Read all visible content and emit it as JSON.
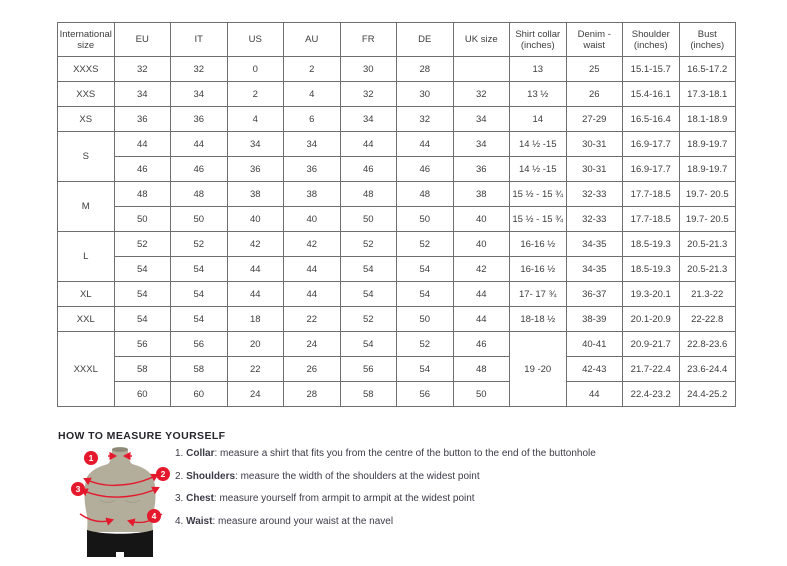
{
  "accent_color": "#e4192c",
  "mannequin_body_color": "#b3ae9b",
  "table": {
    "columns": [
      "International size",
      "EU",
      "IT",
      "US",
      "AU",
      "FR",
      "DE",
      "UK size",
      "Shirt collar (inches)",
      "Denim - waist",
      "Shoulder (inches)",
      "Bust (inches)"
    ],
    "rows": [
      [
        {
          "t": "XXXS"
        },
        {
          "t": "32"
        },
        {
          "t": "32"
        },
        {
          "t": "0"
        },
        {
          "t": "2"
        },
        {
          "t": "30"
        },
        {
          "t": "28"
        },
        {
          "t": ""
        },
        {
          "t": "13"
        },
        {
          "t": "25"
        },
        {
          "t": "15.1-15.7"
        },
        {
          "t": "16.5-17.2"
        }
      ],
      [
        {
          "t": "XXS"
        },
        {
          "t": "34"
        },
        {
          "t": "34"
        },
        {
          "t": "2"
        },
        {
          "t": "4"
        },
        {
          "t": "32"
        },
        {
          "t": "30"
        },
        {
          "t": "32"
        },
        {
          "t": "13 ½"
        },
        {
          "t": "26"
        },
        {
          "t": "15.4-16.1"
        },
        {
          "t": "17.3-18.1"
        }
      ],
      [
        {
          "t": "XS"
        },
        {
          "t": "36"
        },
        {
          "t": "36"
        },
        {
          "t": "4"
        },
        {
          "t": "6"
        },
        {
          "t": "34"
        },
        {
          "t": "32"
        },
        {
          "t": "34"
        },
        {
          "t": "14"
        },
        {
          "t": "27-29"
        },
        {
          "t": "16.5-16.4"
        },
        {
          "t": "18.1-18.9"
        }
      ],
      [
        {
          "t": "S",
          "rs": 2
        },
        {
          "t": "44"
        },
        {
          "t": "44"
        },
        {
          "t": "34"
        },
        {
          "t": "34"
        },
        {
          "t": "44"
        },
        {
          "t": "44"
        },
        {
          "t": "34"
        },
        {
          "t": "14 ½ -15"
        },
        {
          "t": "30-31"
        },
        {
          "t": "16.9-17.7"
        },
        {
          "t": "18.9-19.7"
        }
      ],
      [
        {
          "t": "46"
        },
        {
          "t": "46"
        },
        {
          "t": "36"
        },
        {
          "t": "36"
        },
        {
          "t": "46"
        },
        {
          "t": "46"
        },
        {
          "t": "36"
        },
        {
          "t": "14 ½ -15"
        },
        {
          "t": "30-31"
        },
        {
          "t": "16.9-17.7"
        },
        {
          "t": "18.9-19.7"
        }
      ],
      [
        {
          "t": "M",
          "rs": 2
        },
        {
          "t": "48"
        },
        {
          "t": "48"
        },
        {
          "t": "38"
        },
        {
          "t": "38"
        },
        {
          "t": "48"
        },
        {
          "t": "48"
        },
        {
          "t": "38"
        },
        {
          "t": "15 ½ - 15 ¾"
        },
        {
          "t": "32-33"
        },
        {
          "t": "17.7-18.5"
        },
        {
          "t": "19.7- 20.5"
        }
      ],
      [
        {
          "t": "50"
        },
        {
          "t": "50"
        },
        {
          "t": "40"
        },
        {
          "t": "40"
        },
        {
          "t": "50"
        },
        {
          "t": "50"
        },
        {
          "t": "40"
        },
        {
          "t": "15 ½ - 15 ¾"
        },
        {
          "t": "32-33"
        },
        {
          "t": "17.7-18.5"
        },
        {
          "t": "19.7- 20.5"
        }
      ],
      [
        {
          "t": "L",
          "rs": 2
        },
        {
          "t": "52"
        },
        {
          "t": "52"
        },
        {
          "t": "42"
        },
        {
          "t": "42"
        },
        {
          "t": "52"
        },
        {
          "t": "52"
        },
        {
          "t": "40"
        },
        {
          "t": "16-16 ½"
        },
        {
          "t": "34-35"
        },
        {
          "t": "18.5-19.3"
        },
        {
          "t": "20.5-21.3"
        }
      ],
      [
        {
          "t": "54"
        },
        {
          "t": "54"
        },
        {
          "t": "44"
        },
        {
          "t": "44"
        },
        {
          "t": "54"
        },
        {
          "t": "54"
        },
        {
          "t": "42"
        },
        {
          "t": "16-16 ½"
        },
        {
          "t": "34-35"
        },
        {
          "t": "18.5-19.3"
        },
        {
          "t": "20.5-21.3"
        }
      ],
      [
        {
          "t": "XL"
        },
        {
          "t": "54"
        },
        {
          "t": "54"
        },
        {
          "t": "44"
        },
        {
          "t": "44"
        },
        {
          "t": "54"
        },
        {
          "t": "54"
        },
        {
          "t": "44"
        },
        {
          "t": "17- 17 ¾"
        },
        {
          "t": "36-37"
        },
        {
          "t": "19.3-20.1"
        },
        {
          "t": "21.3-22"
        }
      ],
      [
        {
          "t": "XXL"
        },
        {
          "t": "54"
        },
        {
          "t": "54"
        },
        {
          "t": "18"
        },
        {
          "t": "22"
        },
        {
          "t": "52"
        },
        {
          "t": "50"
        },
        {
          "t": "44"
        },
        {
          "t": "18-18 ½"
        },
        {
          "t": "38-39"
        },
        {
          "t": "20.1-20.9"
        },
        {
          "t": "22-22.8"
        }
      ],
      [
        {
          "t": "XXXL",
          "rs": 3
        },
        {
          "t": "56"
        },
        {
          "t": "56"
        },
        {
          "t": "20"
        },
        {
          "t": "24"
        },
        {
          "t": "54"
        },
        {
          "t": "52"
        },
        {
          "t": "46"
        },
        {
          "t": "19 -20",
          "rs": 3
        },
        {
          "t": "40-41"
        },
        {
          "t": "20.9-21.7"
        },
        {
          "t": "22.8-23.6"
        }
      ],
      [
        {
          "t": "58"
        },
        {
          "t": "58"
        },
        {
          "t": "22"
        },
        {
          "t": "26"
        },
        {
          "t": "56"
        },
        {
          "t": "54"
        },
        {
          "t": "48"
        },
        {
          "t": "42-43"
        },
        {
          "t": "21.7-22.4"
        },
        {
          "t": "23.6-24.4"
        }
      ],
      [
        {
          "t": "60"
        },
        {
          "t": "60"
        },
        {
          "t": "24"
        },
        {
          "t": "28"
        },
        {
          "t": "58"
        },
        {
          "t": "56"
        },
        {
          "t": "50"
        },
        {
          "t": "44"
        },
        {
          "t": "22.4-23.2"
        },
        {
          "t": "24.4-25.2"
        }
      ]
    ]
  },
  "measure_guide": {
    "heading": "HOW TO MEASURE YOURSELF",
    "items": [
      {
        "num": "1.",
        "label": "Collar",
        "text": "measure a shirt that fits you from the centre of the button to the end of the buttonhole"
      },
      {
        "num": "2.",
        "label": "Shoulders",
        "text": "measure the width of the shoulders at the widest point"
      },
      {
        "num": "3.",
        "label": "Chest",
        "text": "measure yourself from armpit to armpit at the widest point"
      },
      {
        "num": "4.",
        "label": "Waist",
        "text": "measure around your waist at the navel"
      }
    ],
    "figure_markers": [
      "1",
      "2",
      "3",
      "4"
    ]
  }
}
